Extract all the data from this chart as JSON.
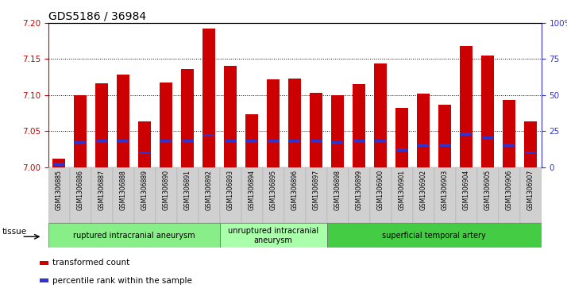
{
  "title": "GDS5186 / 36984",
  "samples": [
    "GSM1306885",
    "GSM1306886",
    "GSM1306887",
    "GSM1306888",
    "GSM1306889",
    "GSM1306890",
    "GSM1306891",
    "GSM1306892",
    "GSM1306893",
    "GSM1306894",
    "GSM1306895",
    "GSM1306896",
    "GSM1306897",
    "GSM1306898",
    "GSM1306899",
    "GSM1306900",
    "GSM1306901",
    "GSM1306902",
    "GSM1306903",
    "GSM1306904",
    "GSM1306905",
    "GSM1306906",
    "GSM1306907"
  ],
  "transformed_count": [
    7.012,
    7.1,
    7.116,
    7.128,
    7.063,
    7.117,
    7.136,
    7.192,
    7.14,
    7.073,
    7.122,
    7.123,
    7.103,
    7.1,
    7.115,
    7.144,
    7.082,
    7.102,
    7.087,
    7.168,
    7.155,
    7.093,
    7.063
  ],
  "percentile_rank": [
    2,
    17,
    18,
    18,
    10,
    18,
    18,
    22,
    18,
    18,
    18,
    18,
    18,
    17,
    18,
    18,
    12,
    15,
    15,
    23,
    20,
    15,
    10
  ],
  "ylim_left": [
    7.0,
    7.2
  ],
  "ylim_right": [
    0,
    100
  ],
  "bar_color": "#cc0000",
  "percentile_color": "#3333cc",
  "plot_bg": "#ffffff",
  "tick_bg": "#d0d0d0",
  "title_fontsize": 10,
  "groups": [
    {
      "label": "ruptured intracranial aneurysm",
      "start": 0,
      "end": 7,
      "color": "#88ee88"
    },
    {
      "label": "unruptured intracranial\naneurysm",
      "start": 8,
      "end": 12,
      "color": "#aaffaa"
    },
    {
      "label": "superficial temporal artery",
      "start": 13,
      "end": 22,
      "color": "#44cc44"
    }
  ],
  "tissue_label": "tissue",
  "legend_items": [
    {
      "color": "#cc0000",
      "label": "transformed count"
    },
    {
      "color": "#3333cc",
      "label": "percentile rank within the sample"
    }
  ],
  "left_axis_color": "#cc0000",
  "right_axis_color": "#3333cc",
  "yticks_left": [
    7.0,
    7.05,
    7.1,
    7.15,
    7.2
  ],
  "yticks_right": [
    0,
    25,
    50,
    75,
    100
  ]
}
